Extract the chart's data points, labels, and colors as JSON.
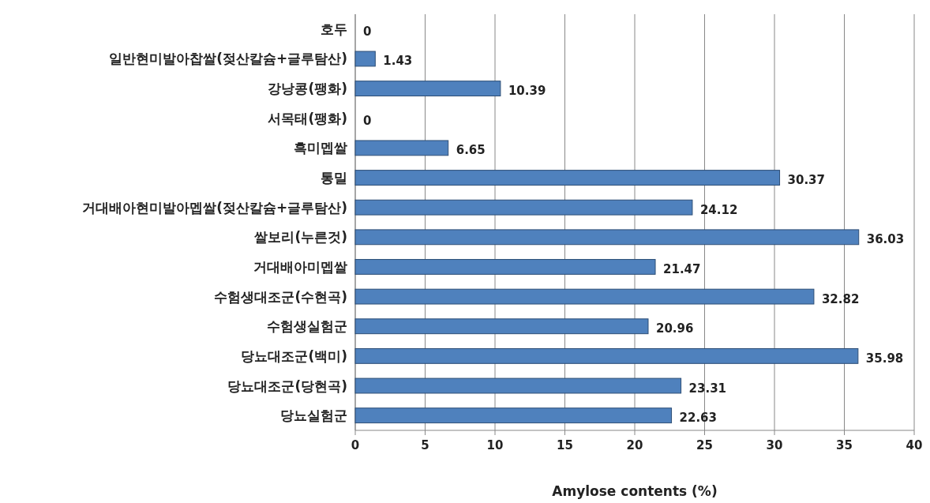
{
  "chart_data": {
    "type": "bar",
    "orientation": "horizontal",
    "xlabel": "Amylose contents  (%)",
    "categories": [
      "호두",
      "일반현미발아찹쌀(젖산칼슘+글루탐산)",
      "강낭콩(팽화)",
      "서목태(팽화)",
      "흑미멥쌀",
      "통밀",
      "거대배아현미발아멥쌀(젖산칼슘+글루탐산)",
      "쌀보리(누른것)",
      "거대배아미멥쌀",
      "수험생대조군(수현곡)",
      "수험생실험군",
      "당뇨대조군(백미)",
      "당뇨대조군(당현곡)",
      "당뇨실험군"
    ],
    "values": [
      0,
      1.43,
      10.39,
      0,
      6.65,
      30.37,
      24.12,
      36.03,
      21.47,
      32.82,
      20.96,
      35.98,
      23.31,
      22.63
    ],
    "color": "#4f81bd",
    "xlim": [
      0,
      40
    ],
    "xticks": [
      0,
      5,
      10,
      15,
      20,
      25,
      30,
      35,
      40
    ],
    "grid": "x",
    "data_labels": true
  }
}
